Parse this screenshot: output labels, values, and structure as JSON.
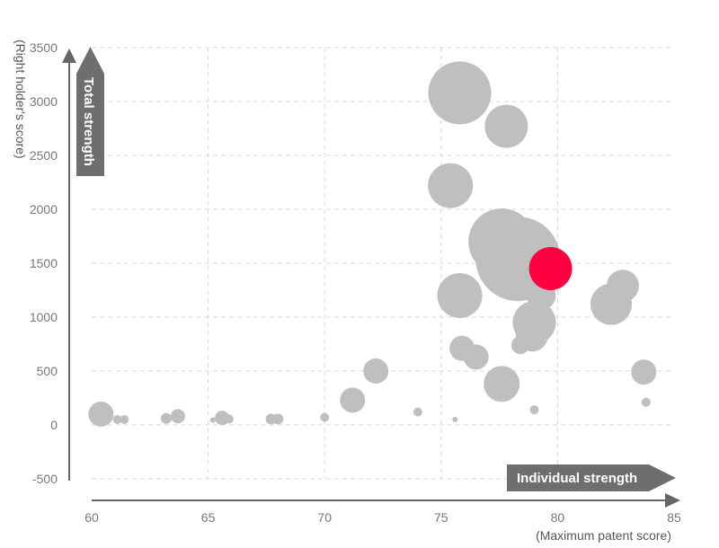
{
  "chart_data": {
    "type": "scatter",
    "xlabel": "(Maximum patent score)",
    "ylabel": "(Right holder's score)",
    "x_arrow_label": "Individual strength",
    "y_arrow_label": "Total strength",
    "xlim": [
      60,
      85
    ],
    "ylim": [
      -500,
      3500
    ],
    "xticks": [
      "60",
      "65",
      "70",
      "75",
      "80",
      "85"
    ],
    "yticks": [
      "-500",
      "0",
      "500",
      "1000",
      "1500",
      "2000",
      "2500",
      "3000",
      "3500"
    ],
    "grid": true,
    "colors": {
      "default": "#bfbfbf",
      "highlight": "#ff0040",
      "axis": "#666666"
    },
    "points": [
      {
        "x": 60.4,
        "y": 100,
        "size": 14
      },
      {
        "x": 61.1,
        "y": 50,
        "size": 5
      },
      {
        "x": 61.4,
        "y": 50,
        "size": 5
      },
      {
        "x": 63.2,
        "y": 60,
        "size": 6
      },
      {
        "x": 63.7,
        "y": 80,
        "size": 8
      },
      {
        "x": 65.2,
        "y": 45,
        "size": 3
      },
      {
        "x": 65.6,
        "y": 65,
        "size": 8
      },
      {
        "x": 65.9,
        "y": 55,
        "size": 5
      },
      {
        "x": 67.7,
        "y": 55,
        "size": 6
      },
      {
        "x": 68.0,
        "y": 55,
        "size": 6
      },
      {
        "x": 70.0,
        "y": 70,
        "size": 5
      },
      {
        "x": 71.2,
        "y": 230,
        "size": 14
      },
      {
        "x": 72.2,
        "y": 500,
        "size": 14
      },
      {
        "x": 74.0,
        "y": 120,
        "size": 5
      },
      {
        "x": 75.6,
        "y": 50,
        "size": 3
      },
      {
        "x": 75.4,
        "y": 2220,
        "size": 25
      },
      {
        "x": 75.8,
        "y": 3080,
        "size": 35
      },
      {
        "x": 77.8,
        "y": 2770,
        "size": 24
      },
      {
        "x": 75.8,
        "y": 1200,
        "size": 25
      },
      {
        "x": 75.9,
        "y": 710,
        "size": 14
      },
      {
        "x": 76.5,
        "y": 630,
        "size": 14
      },
      {
        "x": 77.6,
        "y": 380,
        "size": 20
      },
      {
        "x": 77.6,
        "y": 1700,
        "size": 37
      },
      {
        "x": 78.3,
        "y": 1540,
        "size": 47
      },
      {
        "x": 78.5,
        "y": 1780,
        "size": 16
      },
      {
        "x": 79.3,
        "y": 1200,
        "size": 16
      },
      {
        "x": 79.0,
        "y": 950,
        "size": 24
      },
      {
        "x": 78.9,
        "y": 830,
        "size": 18
      },
      {
        "x": 78.4,
        "y": 740,
        "size": 10
      },
      {
        "x": 79.0,
        "y": 140,
        "size": 5
      },
      {
        "x": 82.3,
        "y": 1120,
        "size": 23
      },
      {
        "x": 82.8,
        "y": 1290,
        "size": 18
      },
      {
        "x": 83.7,
        "y": 490,
        "size": 14
      },
      {
        "x": 83.8,
        "y": 210,
        "size": 5
      },
      {
        "x": 79.7,
        "y": 1450,
        "size": 24,
        "highlight": true
      }
    ]
  }
}
